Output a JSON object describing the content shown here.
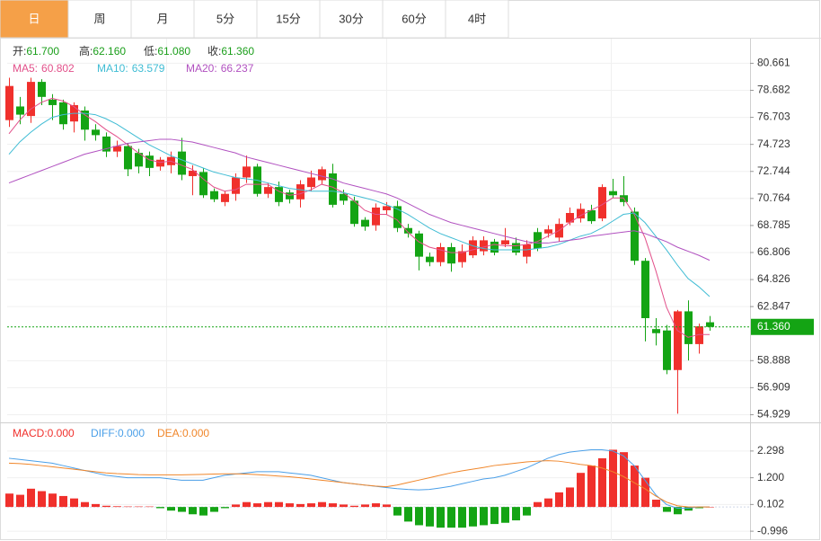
{
  "tabs": [
    "日",
    "周",
    "月",
    "5分",
    "15分",
    "30分",
    "60分",
    "4时"
  ],
  "active_tab": 0,
  "chart_data": [
    {
      "type": "candlestick",
      "info": {
        "labels": [
          "开:",
          "高:",
          "低:",
          "收:"
        ],
        "values": [
          61.7,
          62.16,
          61.08,
          61.36
        ],
        "value_labels": [
          "61.700",
          "62.160",
          "61.080",
          "61.360"
        ],
        "color": "#1a9e1a"
      },
      "up_color": "#f0302c",
      "down_color": "#14a414",
      "open": [
        76.5,
        77.5,
        76.8,
        79.3,
        78.0,
        77.8,
        76.4,
        77.2,
        75.8,
        75.3,
        74.2,
        74.6,
        74.1,
        73.9,
        73.1,
        73.2,
        74.2,
        72.4,
        72.7,
        71.3,
        70.5,
        71.1,
        72.3,
        73.1,
        71.1,
        71.6,
        71.2,
        70.7,
        71.6,
        72.1,
        72.6,
        71.1,
        70.6,
        69.2,
        68.8,
        69.9,
        70.2,
        68.6,
        68.2,
        66.5,
        66.1,
        67.2,
        66.1,
        66.6,
        66.9,
        67.6,
        67.4,
        67.5,
        66.5,
        68.3,
        68.2,
        67.9,
        69.0,
        69.3,
        69.9,
        69.3,
        71.3,
        71.0,
        69.8,
        66.2,
        61.2,
        61.1,
        58.2,
        62.5,
        60.1,
        61.7
      ],
      "high": [
        79.6,
        78.2,
        79.6,
        79.5,
        78.4,
        78.0,
        77.8,
        77.5,
        76.2,
        75.6,
        75.0,
        74.8,
        74.4,
        74.2,
        73.8,
        74.2,
        75.2,
        73.2,
        73.0,
        71.5,
        71.3,
        72.6,
        73.9,
        73.3,
        71.9,
        72.0,
        71.4,
        72.1,
        72.8,
        73.1,
        73.3,
        71.4,
        70.9,
        69.4,
        70.4,
        70.5,
        70.6,
        68.9,
        68.4,
        66.8,
        67.5,
        67.5,
        67.4,
        68.0,
        68.0,
        67.8,
        68.6,
        67.9,
        67.7,
        68.6,
        68.8,
        69.3,
        70.1,
        70.4,
        70.3,
        71.8,
        72.2,
        72.4,
        70.1,
        66.4,
        62.0,
        61.5,
        62.6,
        63.3,
        61.6,
        62.16
      ],
      "low": [
        76.0,
        76.2,
        76.3,
        77.6,
        76.5,
        75.8,
        75.6,
        75.0,
        75.0,
        73.8,
        73.8,
        72.4,
        72.6,
        72.4,
        72.8,
        72.6,
        72.1,
        71.0,
        70.8,
        70.5,
        70.2,
        70.6,
        71.9,
        70.9,
        70.8,
        70.2,
        70.4,
        70.1,
        71.3,
        71.8,
        70.1,
        70.3,
        68.7,
        68.4,
        68.4,
        69.6,
        68.3,
        67.9,
        65.5,
        65.8,
        65.8,
        65.4,
        65.7,
        66.4,
        66.6,
        66.6,
        67.2,
        66.6,
        66.0,
        66.9,
        67.9,
        67.6,
        68.8,
        69.0,
        68.9,
        69.1,
        70.8,
        70.2,
        65.9,
        60.3,
        60.0,
        57.9,
        55.0,
        58.9,
        59.4,
        61.08
      ],
      "close": [
        79.0,
        76.9,
        79.3,
        78.2,
        77.6,
        76.2,
        77.6,
        75.8,
        75.4,
        74.2,
        74.6,
        72.9,
        73.1,
        73.0,
        73.6,
        73.8,
        72.5,
        72.8,
        71.0,
        70.7,
        71.1,
        72.3,
        73.1,
        71.1,
        71.6,
        70.5,
        70.7,
        71.8,
        72.3,
        72.9,
        70.3,
        70.6,
        68.9,
        68.7,
        70.1,
        70.2,
        68.6,
        68.2,
        66.5,
        66.1,
        67.2,
        66.0,
        66.9,
        67.7,
        67.7,
        66.8,
        67.7,
        66.8,
        67.4,
        67.1,
        68.5,
        68.9,
        69.7,
        70.0,
        69.1,
        71.6,
        71.0,
        70.5,
        66.2,
        62.0,
        60.9,
        58.2,
        62.5,
        60.1,
        61.4,
        61.36
      ],
      "series": [
        {
          "name": "MA5:",
          "value_label": "60.802",
          "color": "#e2508a",
          "values": [
            75.5,
            76.5,
            77.3,
            77.8,
            78.1,
            77.9,
            77.5,
            76.9,
            76.4,
            75.8,
            75.3,
            74.7,
            74.1,
            73.6,
            73.4,
            73.5,
            73.2,
            72.9,
            72.2,
            71.6,
            71.3,
            71.4,
            71.8,
            71.8,
            71.8,
            71.3,
            71.0,
            71.1,
            71.4,
            71.8,
            71.6,
            71.2,
            70.6,
            69.9,
            69.6,
            69.6,
            69.2,
            68.3,
            67.6,
            67.2,
            67.0,
            66.8,
            66.8,
            67.0,
            67.2,
            67.4,
            67.3,
            67.3,
            67.4,
            67.6,
            68.0,
            68.4,
            69.0,
            69.5,
            69.9,
            70.3,
            70.8,
            70.8,
            69.6,
            67.9,
            65.5,
            62.8,
            61.1,
            60.6,
            60.8,
            60.802
          ]
        },
        {
          "name": "MA10:",
          "value_label": "63.579",
          "color": "#3fbcd4",
          "values": [
            74.0,
            74.9,
            75.6,
            76.2,
            76.7,
            76.9,
            77.0,
            77.0,
            76.9,
            76.6,
            76.2,
            75.7,
            75.2,
            74.7,
            74.3,
            73.9,
            73.6,
            73.3,
            73.0,
            72.7,
            72.5,
            72.3,
            72.2,
            72.1,
            71.9,
            71.7,
            71.5,
            71.4,
            71.3,
            71.3,
            71.3,
            71.2,
            71.0,
            70.8,
            70.6,
            70.3,
            70.0,
            69.6,
            69.1,
            68.6,
            68.2,
            67.9,
            67.6,
            67.3,
            67.1,
            67.0,
            67.0,
            67.0,
            67.0,
            67.1,
            67.2,
            67.4,
            67.7,
            68.0,
            68.2,
            68.6,
            69.1,
            69.6,
            69.7,
            69.0,
            68.0,
            67.0,
            65.9,
            64.9,
            64.3,
            63.579
          ]
        },
        {
          "name": "MA20:",
          "value_label": "66.237",
          "color": "#b151c0",
          "values": [
            71.9,
            72.2,
            72.5,
            72.8,
            73.1,
            73.4,
            73.7,
            74.0,
            74.2,
            74.4,
            74.6,
            74.8,
            74.9,
            75.0,
            75.1,
            75.1,
            75.0,
            74.9,
            74.7,
            74.5,
            74.3,
            74.1,
            73.8,
            73.6,
            73.4,
            73.2,
            73.0,
            72.8,
            72.6,
            72.4,
            72.2,
            71.9,
            71.7,
            71.5,
            71.3,
            71.1,
            70.8,
            70.4,
            70.0,
            69.6,
            69.3,
            69.0,
            68.8,
            68.6,
            68.4,
            68.2,
            68.0,
            67.8,
            67.6,
            67.5,
            67.5,
            67.6,
            67.7,
            67.8,
            68.0,
            68.1,
            68.2,
            68.3,
            68.4,
            68.2,
            67.9,
            67.6,
            67.2,
            66.9,
            66.6,
            66.237
          ]
        }
      ],
      "last_price": {
        "value": 61.36,
        "label": "61.360",
        "color": "#14a414"
      },
      "ylim": [
        54.5,
        82.4
      ],
      "yticks": [
        80.661,
        78.682,
        76.703,
        74.723,
        72.744,
        70.764,
        68.785,
        66.806,
        64.826,
        62.847,
        58.888,
        56.909,
        54.929
      ],
      "grid": true
    },
    {
      "type": "macd",
      "histogram": {
        "name": "MACD:",
        "value_label": "0.000",
        "color": "#f0302c",
        "values": [
          0.55,
          0.5,
          0.75,
          0.65,
          0.55,
          0.45,
          0.35,
          0.2,
          0.12,
          0.05,
          0.03,
          0.02,
          0.02,
          0.02,
          -0.05,
          -0.15,
          -0.2,
          -0.3,
          -0.35,
          -0.2,
          -0.05,
          0.1,
          0.2,
          0.15,
          0.2,
          0.2,
          0.15,
          0.12,
          0.15,
          0.2,
          0.15,
          0.1,
          0.05,
          0.1,
          0.15,
          0.1,
          -0.35,
          -0.6,
          -0.75,
          -0.8,
          -0.85,
          -0.85,
          -0.85,
          -0.8,
          -0.75,
          -0.7,
          -0.65,
          -0.55,
          -0.35,
          0.2,
          0.35,
          0.6,
          0.8,
          1.4,
          1.7,
          2.0,
          2.35,
          2.25,
          1.7,
          1.2,
          0.3,
          -0.2,
          -0.3,
          -0.15,
          -0.05,
          0.0
        ]
      },
      "up_color": "#f0302c",
      "down_color": "#14a414",
      "series": [
        {
          "name": "DIFF:",
          "value_label": "0.000",
          "color": "#4a9fe8",
          "values": [
            2.0,
            1.95,
            1.9,
            1.85,
            1.8,
            1.7,
            1.6,
            1.5,
            1.4,
            1.3,
            1.25,
            1.2,
            1.2,
            1.2,
            1.2,
            1.15,
            1.1,
            1.1,
            1.1,
            1.2,
            1.3,
            1.35,
            1.4,
            1.45,
            1.45,
            1.45,
            1.4,
            1.35,
            1.3,
            1.2,
            1.1,
            1.0,
            0.95,
            0.9,
            0.85,
            0.8,
            0.75,
            0.72,
            0.7,
            0.72,
            0.78,
            0.85,
            0.95,
            1.05,
            1.15,
            1.2,
            1.3,
            1.45,
            1.6,
            1.8,
            2.0,
            2.15,
            2.25,
            2.3,
            2.35,
            2.35,
            2.3,
            2.1,
            1.7,
            1.1,
            0.5,
            0.1,
            -0.05,
            -0.05,
            0.0,
            0.0
          ]
        },
        {
          "name": "DEA:",
          "value_label": "0.000",
          "color": "#f0862a",
          "values": [
            1.8,
            1.78,
            1.75,
            1.7,
            1.65,
            1.6,
            1.55,
            1.5,
            1.45,
            1.4,
            1.37,
            1.35,
            1.33,
            1.32,
            1.32,
            1.32,
            1.32,
            1.33,
            1.34,
            1.35,
            1.36,
            1.36,
            1.35,
            1.33,
            1.3,
            1.27,
            1.24,
            1.2,
            1.15,
            1.1,
            1.05,
            1.0,
            0.95,
            0.9,
            0.86,
            0.83,
            0.9,
            1.0,
            1.1,
            1.2,
            1.3,
            1.4,
            1.48,
            1.55,
            1.62,
            1.7,
            1.75,
            1.8,
            1.85,
            1.88,
            1.9,
            1.88,
            1.82,
            1.75,
            1.7,
            1.6,
            1.45,
            1.25,
            1.0,
            0.75,
            0.45,
            0.2,
            0.05,
            0.0,
            0.0,
            0.0
          ]
        }
      ],
      "ylim": [
        -1.25,
        3.4
      ],
      "yticks": [
        2.298,
        {
          "value": 1.2,
          "label": "1.200"
        },
        0.102,
        -0.996
      ],
      "grid": true
    }
  ]
}
